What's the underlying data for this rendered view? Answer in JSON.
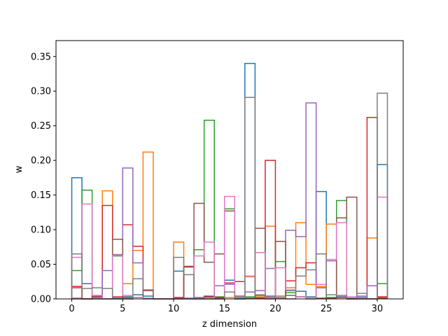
{
  "chart_data": {
    "type": "histogram-step",
    "xlabel": "z dimension",
    "ylabel": "w",
    "xlim": [
      -1.55,
      32.55
    ],
    "ylim": [
      0,
      0.373
    ],
    "x_ticks": [
      0,
      5,
      10,
      15,
      20,
      25,
      30
    ],
    "y_ticks": [
      0.0,
      0.05,
      0.1,
      0.15,
      0.2,
      0.25,
      0.3,
      0.35
    ],
    "y_tick_labels": [
      "0.00",
      "0.05",
      "0.10",
      "0.15",
      "0.20",
      "0.25",
      "0.30",
      "0.35"
    ],
    "bin_edges": [
      0,
      1,
      2,
      3,
      4,
      5,
      6,
      7,
      8,
      9,
      10,
      11,
      12,
      13,
      14,
      15,
      16,
      17,
      18,
      19,
      20,
      21,
      22,
      23,
      24,
      25,
      26,
      27,
      28,
      29,
      30,
      31
    ],
    "series": [
      {
        "color": "#1f77b4",
        "values": [
          0.175,
          0.022,
          0.003,
          0.0,
          0.001,
          0.003,
          0.006,
          0.004,
          0.0,
          0.0,
          0.04,
          0.001,
          0.002,
          0.004,
          0.001,
          0.027,
          0.002,
          0.34,
          0.005,
          0.002,
          0.001,
          0.012,
          0.011,
          0.003,
          0.155,
          0.001,
          0.003,
          0.001,
          0.002,
          0.0,
          0.194
        ]
      },
      {
        "color": "#ff7f0e",
        "values": [
          0.0,
          0.0,
          0.004,
          0.156,
          0.0,
          0.022,
          0.07,
          0.212,
          0.0,
          0.0,
          0.082,
          0.0,
          0.0,
          0.002,
          0.0,
          0.002,
          0.0,
          0.032,
          0.004,
          0.105,
          0.002,
          0.016,
          0.11,
          0.021,
          0.018,
          0.108,
          0.002,
          0.0,
          0.0,
          0.088,
          0.002
        ]
      },
      {
        "color": "#2ca02c",
        "values": [
          0.041,
          0.157,
          0.0,
          0.0,
          0.062,
          0.0,
          0.002,
          0.0,
          0.0,
          0.0,
          0.0,
          0.0,
          0.071,
          0.258,
          0.003,
          0.13,
          0.0,
          0.003,
          0.002,
          0.001,
          0.054,
          0.009,
          0.003,
          0.0,
          0.016,
          0.002,
          0.142,
          0.0,
          0.0,
          0.0,
          0.022
        ]
      },
      {
        "color": "#d62728",
        "values": [
          0.018,
          0.0,
          0.003,
          0.135,
          0.003,
          0.107,
          0.076,
          0.012,
          0.0,
          0.0,
          0.002,
          0.047,
          0.0,
          0.003,
          0.002,
          0.023,
          0.025,
          0.001,
          0.001,
          0.2,
          0.001,
          0.026,
          0.045,
          0.052,
          0.001,
          0.001,
          0.002,
          0.0,
          0.0,
          0.262,
          0.003
        ]
      },
      {
        "color": "#9467bd",
        "values": [
          0.001,
          0.0,
          0.001,
          0.041,
          0.064,
          0.189,
          0.052,
          0.001,
          0.0,
          0.0,
          0.0,
          0.001,
          0.002,
          0.0,
          0.019,
          0.021,
          0.0,
          0.01,
          0.012,
          0.044,
          0.001,
          0.099,
          0.09,
          0.283,
          0.016,
          0.055,
          0.003,
          0.0,
          0.004,
          0.019,
          0.001
        ]
      },
      {
        "color": "#8c564b",
        "values": [
          0.016,
          0.0,
          0.004,
          0.0,
          0.086,
          0.002,
          0.002,
          0.013,
          0.0,
          0.0,
          0.001,
          0.046,
          0.138,
          0.053,
          0.065,
          0.127,
          0.004,
          0.001,
          0.102,
          0.004,
          0.083,
          0.005,
          0.003,
          0.002,
          0.001,
          0.001,
          0.117,
          0.147,
          0.001,
          0.0,
          0.001
        ]
      },
      {
        "color": "#e377c2",
        "values": [
          0.06,
          0.137,
          0.005,
          0.0,
          0.063,
          0.005,
          0.002,
          0.001,
          0.0,
          0.0,
          0.0,
          0.0,
          0.062,
          0.082,
          0.0,
          0.148,
          0.0,
          0.033,
          0.067,
          0.001,
          0.045,
          0.013,
          0.003,
          0.002,
          0.021,
          0.057,
          0.11,
          0.003,
          0.001,
          0.0,
          0.147
        ]
      },
      {
        "color": "#7f7f7f",
        "values": [
          0.065,
          0.015,
          0.016,
          0.015,
          0.0,
          0.0,
          0.029,
          0.013,
          0.0,
          0.0,
          0.06,
          0.035,
          0.0,
          0.0,
          0.0,
          0.01,
          0.0,
          0.291,
          0.006,
          0.0,
          0.004,
          0.0,
          0.033,
          0.042,
          0.065,
          0.006,
          0.005,
          0.001,
          0.008,
          0.0,
          0.297
        ]
      }
    ]
  }
}
